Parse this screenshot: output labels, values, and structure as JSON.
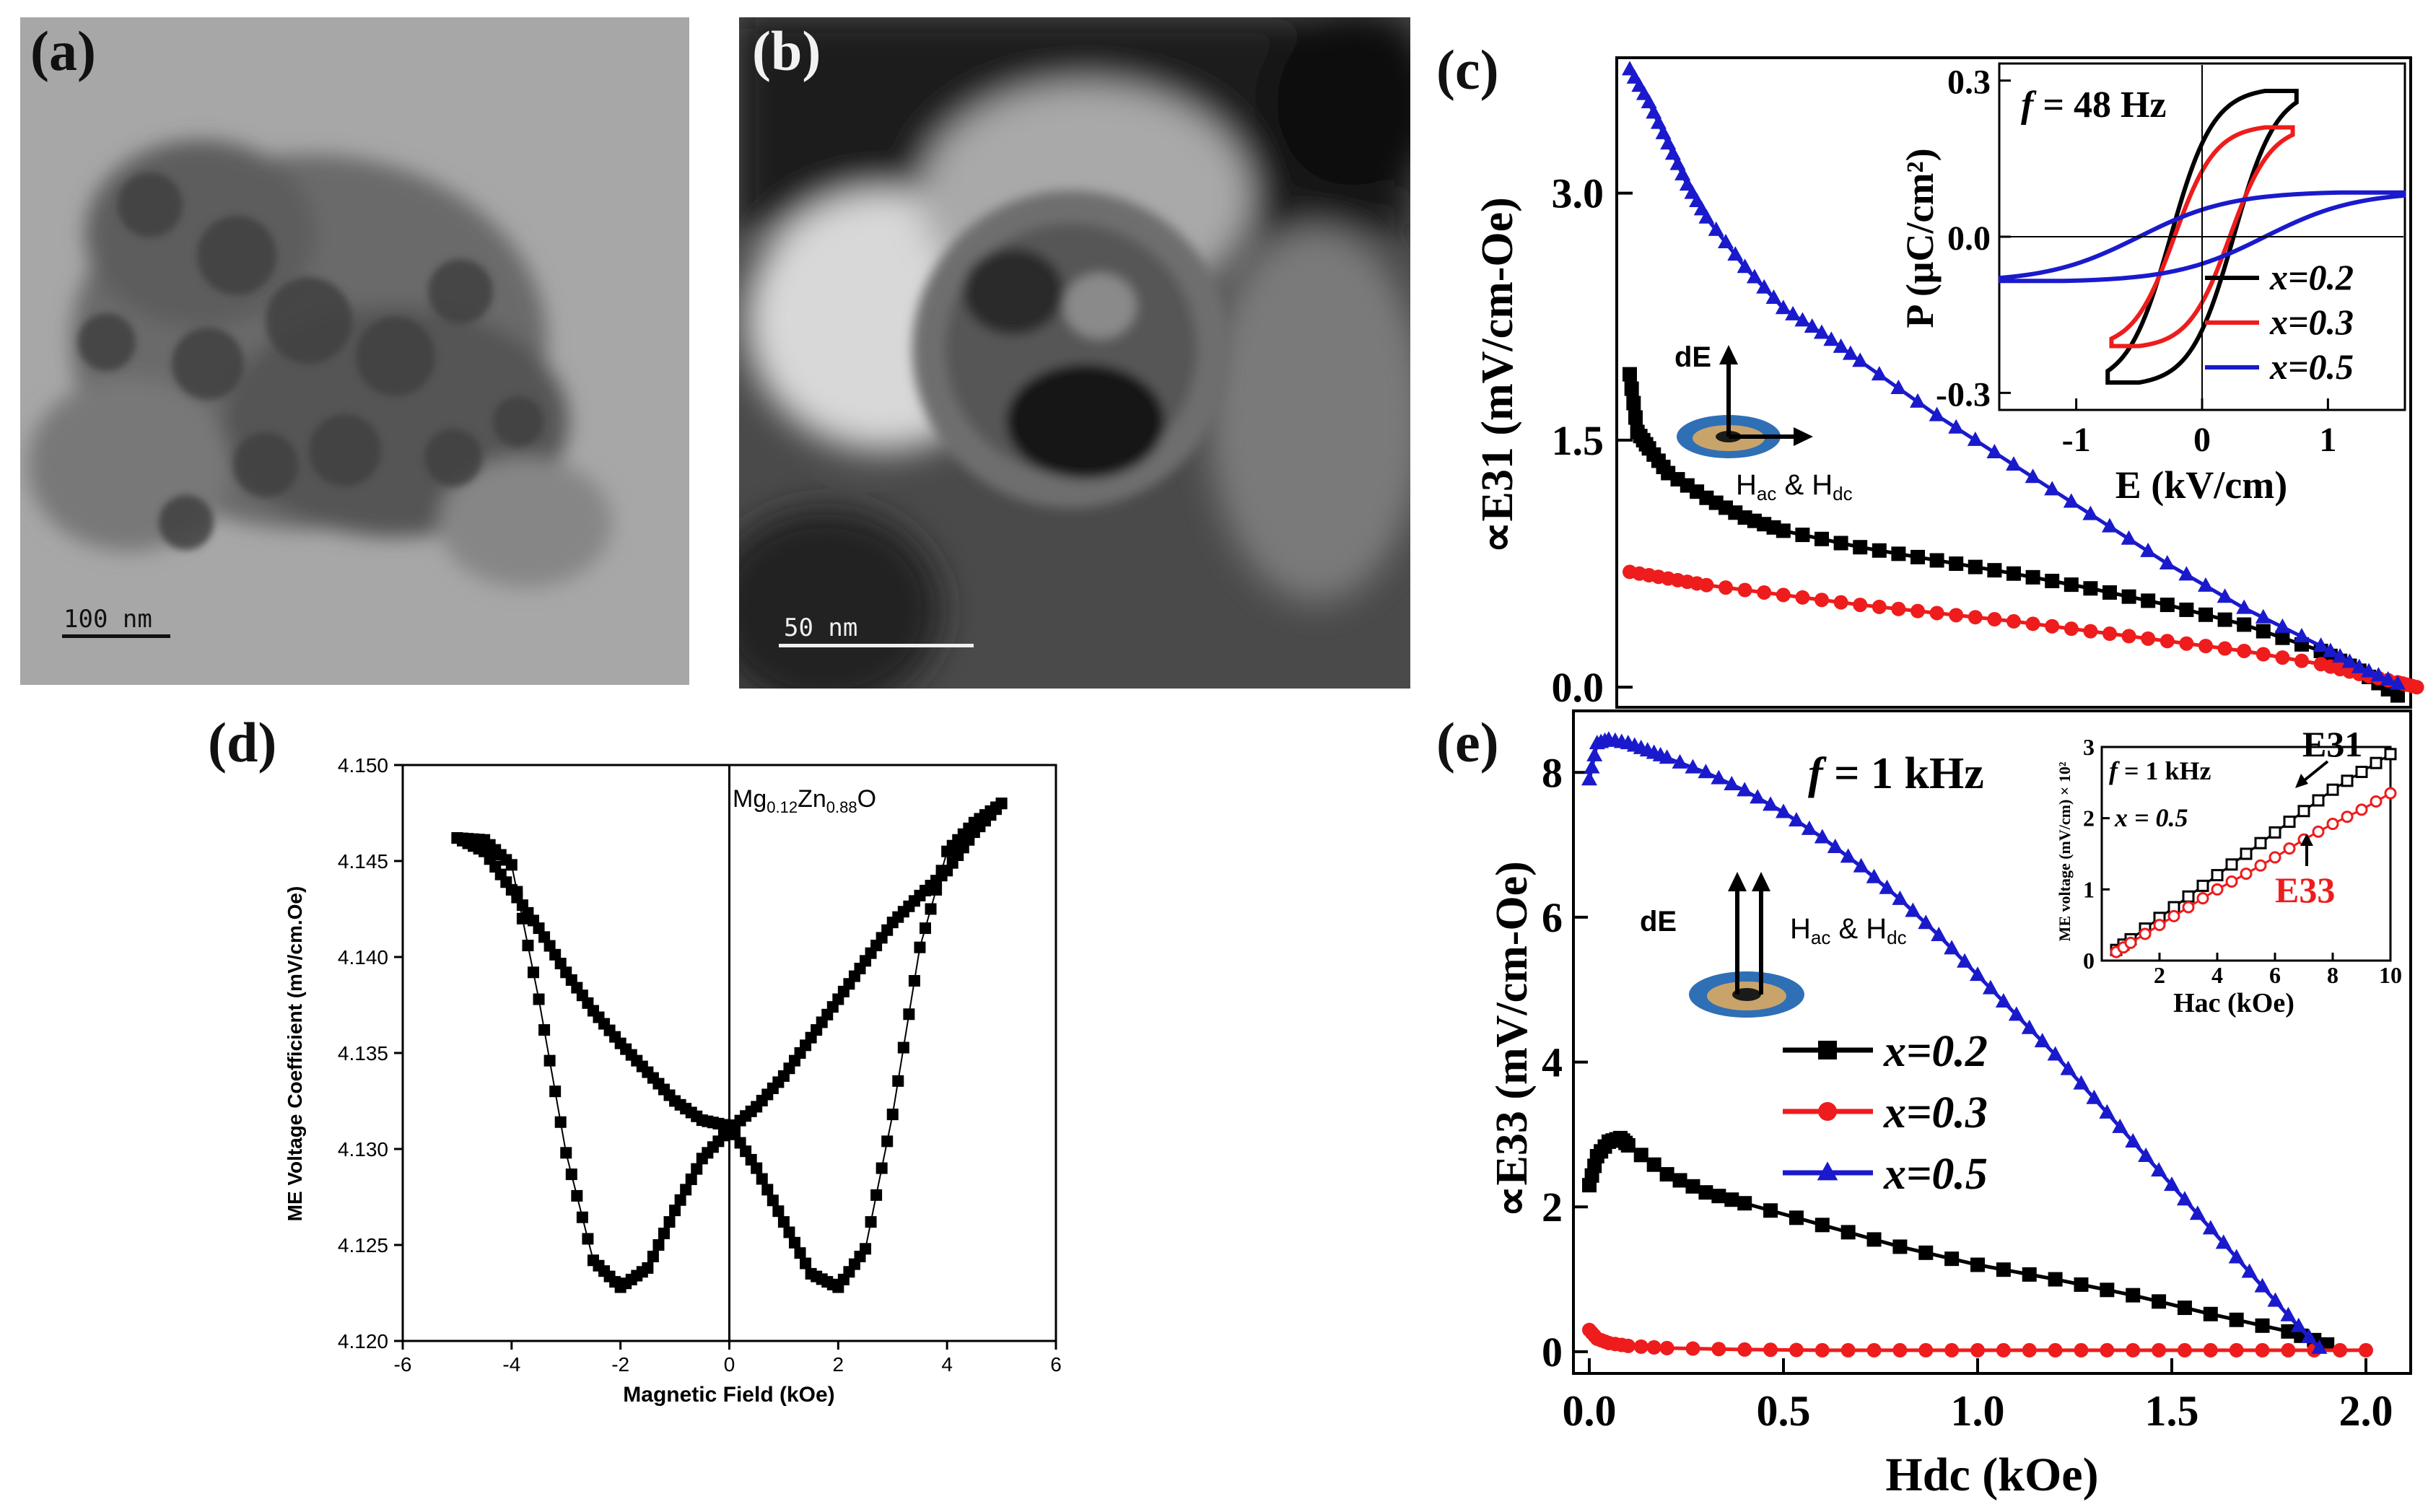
{
  "panels": {
    "a": {
      "label": "(a)",
      "scale": "100 nm"
    },
    "b": {
      "label": "(b)",
      "scale": "50 nm"
    },
    "c": {
      "label": "(c)"
    },
    "d": {
      "label": "(d)"
    },
    "e": {
      "label": "(e)"
    }
  },
  "colors": {
    "x02": "#000000",
    "x03": "#ee1c1c",
    "x05": "#1a1acc",
    "disk_outer": "#2f6fb5",
    "disk_inner": "#c9a46a"
  },
  "chart_data": [
    {
      "id": "c",
      "type": "line",
      "ylabel": "∝E31 (mV/cm-Oe)",
      "xlim": [
        0,
        2.0
      ],
      "ylim": [
        -0.1,
        3.8
      ],
      "yticks": [
        "0.0",
        "1.5",
        "3.0"
      ],
      "diagram": {
        "de_label": "dE",
        "h_label": "H",
        "h_sub1": "ac",
        "h_amp": " & H",
        "h_sub2": "dc"
      },
      "series": [
        {
          "name": "x=0.2",
          "marker": "square",
          "x": [
            0,
            0.02,
            0.05,
            0.1,
            0.2,
            0.3,
            0.4,
            0.6,
            0.8,
            1.0,
            1.2,
            1.4,
            1.6,
            1.8,
            1.9,
            2.0
          ],
          "y": [
            1.9,
            1.55,
            1.45,
            1.3,
            1.15,
            1.03,
            0.95,
            0.85,
            0.77,
            0.69,
            0.6,
            0.5,
            0.38,
            0.22,
            0.1,
            -0.05
          ]
        },
        {
          "name": "x=0.3",
          "marker": "circle",
          "x": [
            0,
            0.1,
            0.2,
            0.4,
            0.6,
            0.8,
            1.0,
            1.2,
            1.4,
            1.6,
            1.8,
            1.9,
            2.0,
            2.05
          ],
          "y": [
            0.7,
            0.66,
            0.62,
            0.56,
            0.5,
            0.45,
            0.4,
            0.34,
            0.28,
            0.22,
            0.14,
            0.08,
            0.03,
            0.0
          ]
        },
        {
          "name": "x=0.5",
          "marker": "triangle",
          "x": [
            0,
            0.05,
            0.1,
            0.15,
            0.2,
            0.3,
            0.4,
            0.5,
            0.6,
            0.8,
            1.0,
            1.2,
            1.4,
            1.6,
            1.8,
            1.9,
            2.0
          ],
          "y": [
            3.75,
            3.55,
            3.3,
            3.05,
            2.85,
            2.55,
            2.3,
            2.15,
            1.98,
            1.65,
            1.35,
            1.05,
            0.75,
            0.48,
            0.25,
            0.12,
            0.02
          ]
        }
      ],
      "inset": {
        "annotation_f": "f",
        "annotation_eq": " = 48 Hz",
        "xlabel": "E (kV/cm)",
        "ylabel": "P (μC/cm²)",
        "xticks": [
          "-1",
          "0",
          "1"
        ],
        "yticks": [
          "0.3",
          "0.0",
          "-0.3"
        ],
        "xlim": [
          -1.6,
          1.6
        ],
        "ylim": [
          -0.33,
          0.33
        ],
        "legend": [
          "x=0.2",
          "x=0.3",
          "x=0.5"
        ],
        "loops": [
          {
            "name": "x=0.2",
            "emax": 0.75,
            "pmax": 0.28,
            "ec": 0.25,
            "pr": 0.1
          },
          {
            "name": "x=0.3",
            "emax": 0.72,
            "pmax": 0.21,
            "ec": 0.22,
            "pr": 0.05
          },
          {
            "name": "x=0.5",
            "emax": 1.6,
            "pmax": 0.085,
            "ec": 0.5,
            "pr": 0.02
          }
        ]
      }
    },
    {
      "id": "d",
      "type": "line",
      "xlabel": "Magnetic Field (kOe)",
      "ylabel": "ME Voltage Coefficient (mV/cm.Oe)",
      "xlim": [
        -6,
        6
      ],
      "ylim": [
        4.12,
        4.15
      ],
      "xticks": [
        "-6",
        "-4",
        "-2",
        "0",
        "2",
        "4",
        "6"
      ],
      "yticks": [
        "4.150",
        "4.145",
        "4.140",
        "4.135",
        "4.130",
        "4.125",
        "4.120"
      ],
      "annotation": {
        "pre": "Mg",
        "sub1": "0.12",
        "mid": "Zn",
        "sub2": "0.88",
        "post": "O"
      },
      "series": [
        {
          "name": "descending",
          "x": [
            5.0,
            4.5,
            4.0,
            3.5,
            3.0,
            2.5,
            2.0,
            1.5,
            1.0,
            0.5,
            0.0,
            -0.5,
            -1.0,
            -1.5,
            -2.0,
            -2.5,
            -3.0,
            -3.5,
            -4.0,
            -4.5,
            -5.0
          ],
          "y": [
            4.148,
            4.1465,
            4.1445,
            4.1432,
            4.1418,
            4.1398,
            4.1378,
            4.1358,
            4.1338,
            4.1322,
            4.131,
            4.1295,
            4.1268,
            4.1238,
            4.1228,
            4.1242,
            4.1298,
            4.1378,
            4.1448,
            4.1461,
            4.1462
          ]
        },
        {
          "name": "ascending",
          "x": [
            -5.0,
            -4.5,
            -4.0,
            -3.5,
            -3.0,
            -2.5,
            -2.0,
            -1.5,
            -1.0,
            -0.5,
            0.0,
            0.5,
            1.0,
            1.5,
            2.0,
            2.5,
            3.0,
            3.5,
            4.0,
            4.5,
            5.0
          ],
          "y": [
            4.1462,
            4.1455,
            4.1435,
            4.1415,
            4.1392,
            4.1372,
            4.1355,
            4.134,
            4.1325,
            4.1315,
            4.1312,
            4.129,
            4.1262,
            4.1235,
            4.1228,
            4.1248,
            4.1318,
            4.1405,
            4.1455,
            4.147,
            4.148
          ]
        }
      ]
    },
    {
      "id": "e",
      "type": "line",
      "xlabel": "Hdc (kOe)",
      "ylabel": "∝E33 (mV/cm-Oe)",
      "xlim": [
        0,
        2.0
      ],
      "ylim": [
        -0.3,
        8.8
      ],
      "xticks": [
        "0.0",
        "0.5",
        "1.0",
        "1.5",
        "2.0"
      ],
      "yticks": [
        "0",
        "2",
        "4",
        "6",
        "8"
      ],
      "annotation_f": "f",
      "annotation_eq": " = 1 kHz",
      "diagram": {
        "de_label": "dE",
        "h_label": "H",
        "h_sub1": "ac",
        "h_amp": " & H",
        "h_sub2": "dc"
      },
      "legend": [
        "x=0.2",
        "x=0.3",
        "x=0.5"
      ],
      "series": [
        {
          "name": "x=0.2",
          "marker": "square",
          "x": [
            0,
            0.02,
            0.05,
            0.08,
            0.1,
            0.2,
            0.3,
            0.4,
            0.6,
            0.8,
            1.0,
            1.2,
            1.4,
            1.6,
            1.8,
            1.9
          ],
          "y": [
            2.3,
            2.7,
            2.9,
            2.95,
            2.85,
            2.45,
            2.2,
            2.05,
            1.75,
            1.45,
            1.2,
            1.0,
            0.78,
            0.52,
            0.28,
            0.1
          ]
        },
        {
          "name": "x=0.3",
          "marker": "circle",
          "x": [
            0,
            0.02,
            0.05,
            0.1,
            0.2,
            0.4,
            0.6,
            0.8,
            1.0,
            1.2,
            1.4,
            1.6,
            1.8,
            2.0
          ],
          "y": [
            0.3,
            0.18,
            0.12,
            0.08,
            0.05,
            0.03,
            0.02,
            0.02,
            0.02,
            0.02,
            0.02,
            0.02,
            0.02,
            0.02
          ]
        },
        {
          "name": "x=0.5",
          "marker": "triangle",
          "x": [
            0,
            0.02,
            0.05,
            0.1,
            0.15,
            0.2,
            0.3,
            0.4,
            0.5,
            0.6,
            0.7,
            0.8,
            0.9,
            1.0,
            1.1,
            1.2,
            1.3,
            1.4,
            1.5,
            1.6,
            1.7,
            1.8,
            1.88
          ],
          "y": [
            7.9,
            8.4,
            8.45,
            8.4,
            8.3,
            8.2,
            8.0,
            7.75,
            7.45,
            7.1,
            6.7,
            6.25,
            5.75,
            5.2,
            4.65,
            4.1,
            3.5,
            2.9,
            2.3,
            1.7,
            1.1,
            0.5,
            0.05
          ]
        }
      ],
      "inset": {
        "annotation_f": "f",
        "annotation_eq": " = 1 kHz",
        "annotation_x": "x = 0.5",
        "xlabel": "Hac (kOe)",
        "ylabel": "ME voltage (mV/cm) × 10²",
        "xticks": [
          "2",
          "4",
          "6",
          "8",
          "10"
        ],
        "yticks": [
          "0",
          "1",
          "2",
          "3"
        ],
        "xlim": [
          0,
          10
        ],
        "ylim": [
          0,
          3
        ],
        "labels": [
          "E31",
          "E33"
        ],
        "series": [
          {
            "name": "E31",
            "marker": "square-open",
            "x": [
              0.5,
              1,
              2,
              3,
              4,
              5,
              6,
              7,
              8,
              9,
              10
            ],
            "y": [
              0.15,
              0.3,
              0.6,
              0.9,
              1.2,
              1.5,
              1.8,
              2.1,
              2.4,
              2.65,
              2.9
            ]
          },
          {
            "name": "E33",
            "marker": "circle-open",
            "x": [
              0.5,
              1,
              2,
              3,
              4,
              5,
              6,
              7,
              8,
              9,
              10
            ],
            "y": [
              0.12,
              0.25,
              0.5,
              0.75,
              1.0,
              1.22,
              1.45,
              1.7,
              1.92,
              2.12,
              2.35
            ]
          }
        ]
      }
    }
  ]
}
